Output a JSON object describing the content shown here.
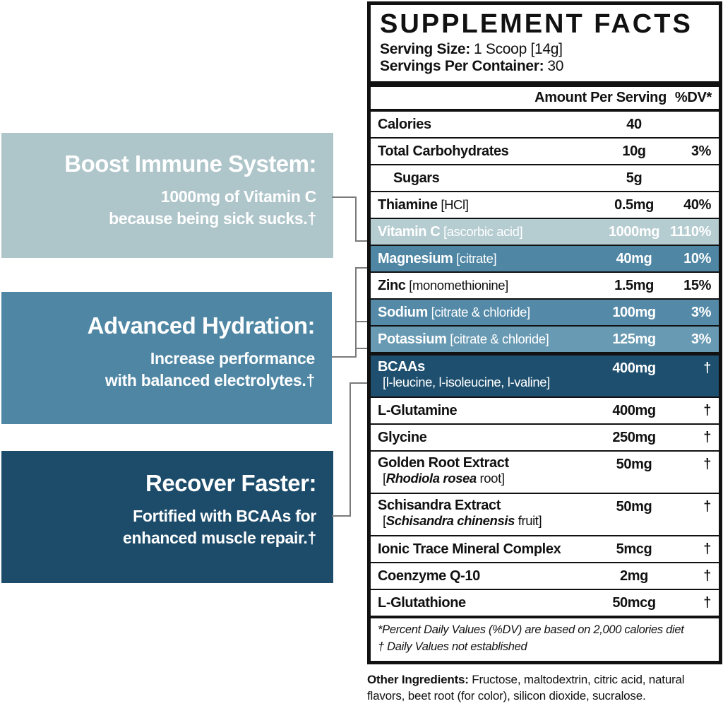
{
  "colors": {
    "table_border": "#111111",
    "connector": "#7b7b7b",
    "light": "#b5ccd1",
    "medium": "#4e86a4",
    "medium_sodium": "#548aa8",
    "medium_potassium": "#689ab3",
    "dark": "#1e4f6f",
    "callout_light": "#aec5ca",
    "callout_medium": "#4e86a4",
    "callout_dark": "#1d4c6b"
  },
  "panel": {
    "title": "SUPPLEMENT FACTS",
    "serving_size_label": "Serving Size:",
    "serving_size_value": "1 Scoop [14g]",
    "servings_label": "Servings Per Container:",
    "servings_value": "30",
    "col_amount": "Amount Per Serving",
    "col_dv": "%DV*",
    "rows": [
      {
        "name": "Calories",
        "amount": "40",
        "dv": ""
      },
      {
        "name": "Total Carbohydrates",
        "amount": "10g",
        "dv": "3%"
      },
      {
        "name": "Sugars",
        "amount": "5g",
        "dv": "",
        "indent": true
      },
      {
        "name": "Thiamine",
        "detail": "[HCl]",
        "amount": "0.5mg",
        "dv": "40%"
      },
      {
        "name": "Vitamin C",
        "detail": "[ascorbic acid]",
        "amount": "1000mg",
        "dv": "1110%",
        "hl": "light"
      },
      {
        "name": "Magnesium",
        "detail": "[citrate]",
        "amount": "40mg",
        "dv": "10%",
        "hl": "medium"
      },
      {
        "name": "Zinc",
        "detail": "[monomethionine]",
        "amount": "1.5mg",
        "dv": "15%"
      },
      {
        "name": "Sodium",
        "detail": "[citrate & chloride]",
        "amount": "100mg",
        "dv": "3%",
        "hl": "medium_sodium"
      },
      {
        "name": "Potassium",
        "detail": "[citrate & chloride]",
        "amount": "125mg",
        "dv": "3%",
        "hl": "medium_potassium"
      },
      {
        "name": "BCAAs",
        "sub_text": "[l-leucine, l-isoleucine, l-valine]",
        "amount": "400mg",
        "dv": "†",
        "hl": "dark",
        "thick_top": true
      },
      {
        "name": "L-Glutamine",
        "amount": "400mg",
        "dv": "†"
      },
      {
        "name": "Glycine",
        "amount": "250mg",
        "dv": "†"
      },
      {
        "name": "Golden Root Extract",
        "sub_italic": "Rhodiola rosea",
        "sub_post": " root",
        "amount": "50mg",
        "dv": "†"
      },
      {
        "name": "Schisandra Extract",
        "sub_italic": "Schisandra chinensis",
        "sub_post": " fruit",
        "amount": "50mg",
        "dv": "†"
      },
      {
        "name": "Ionic Trace Mineral Complex",
        "amount": "5mcg",
        "dv": "†"
      },
      {
        "name": "Coenzyme Q-10",
        "amount": "2mg",
        "dv": "†"
      },
      {
        "name": "L-Glutathione",
        "amount": "50mcg",
        "dv": "†"
      }
    ],
    "footnote_line1": "*Percent Daily Values (%DV) are based on 2,000 calories diet",
    "footnote_line2": "† Daily Values not established"
  },
  "other_ingredients": {
    "label": "Other Ingredients:",
    "text": "Fructose, maltodextrin, citric acid, natural flavors, beet root (for color), silicon dioxide, sucralose."
  },
  "callouts": [
    {
      "title": "Boost Immune System:",
      "line1": "1000mg of Vitamin C",
      "line2": "because being sick sucks.†",
      "color_key": "callout_light"
    },
    {
      "title": "Advanced Hydration:",
      "line1": "Increase performance",
      "line2": "with balanced electrolytes.†",
      "color_key": "callout_medium"
    },
    {
      "title": "Recover Faster:",
      "line1": "Fortified with BCAAs for",
      "line2": "enhanced muscle repair.†",
      "color_key": "callout_dark"
    }
  ]
}
